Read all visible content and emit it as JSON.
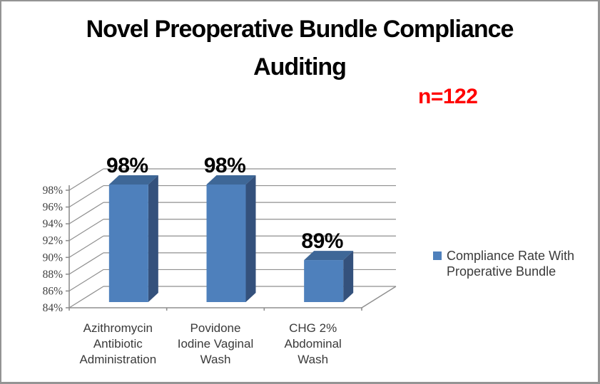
{
  "window": {
    "background": "#ffffff",
    "border_color": "#949494"
  },
  "title": {
    "text": "Novel Preoperative Bundle Compliance Auditing",
    "lines": [
      "Novel Preoperative Bundle Compliance",
      "Auditing"
    ]
  },
  "annotation": {
    "text": "n=122"
  },
  "legend": {
    "label": "Compliance Rate With Properative Bundle",
    "lines": [
      "Compliance Rate With",
      "Properative Bundle"
    ],
    "position": "right"
  },
  "colors": {
    "bar_front": "#4e80bc",
    "bar_top": "#3e6797",
    "bar_side": "#34517c",
    "gridline": "#8f8f8f",
    "axis": "#8f8f8f",
    "tick_text": "#3f3f3f",
    "category_text": "#3a3a3a",
    "data_label": "#000000",
    "title_text": "#000000",
    "annotation_red": "#ff0000"
  },
  "chart_data": {
    "type": "bar",
    "style": "3d-column",
    "title": "Novel Preoperative Bundle Compliance Auditing",
    "annotation": "n=122",
    "categories": [
      {
        "name": "Azithromycin Antibiotic Administration",
        "lines": [
          "Azithromycin",
          "Antibiotic",
          "Administration"
        ]
      },
      {
        "name": "Povidone Iodine Vaginal Wash",
        "lines": [
          "Povidone",
          "Iodine Vaginal",
          "Wash"
        ]
      },
      {
        "name": "CHG 2% Abdominal Wash",
        "lines": [
          "CHG 2%",
          "Abdominal",
          "Wash"
        ]
      }
    ],
    "series": [
      {
        "name": "Compliance Rate With Properative Bundle",
        "values": [
          98,
          98,
          89
        ]
      }
    ],
    "values": [
      98,
      98,
      89
    ],
    "data_labels": [
      "98%",
      "98%",
      "89%"
    ],
    "xlabel": "",
    "ylabel": "",
    "ylim": [
      84,
      98
    ],
    "ytick_step": 2,
    "ytick_labels": [
      "84%",
      "86%",
      "88%",
      "90%",
      "92%",
      "94%",
      "96%",
      "98%"
    ],
    "grid": true,
    "legend_position": "right"
  }
}
